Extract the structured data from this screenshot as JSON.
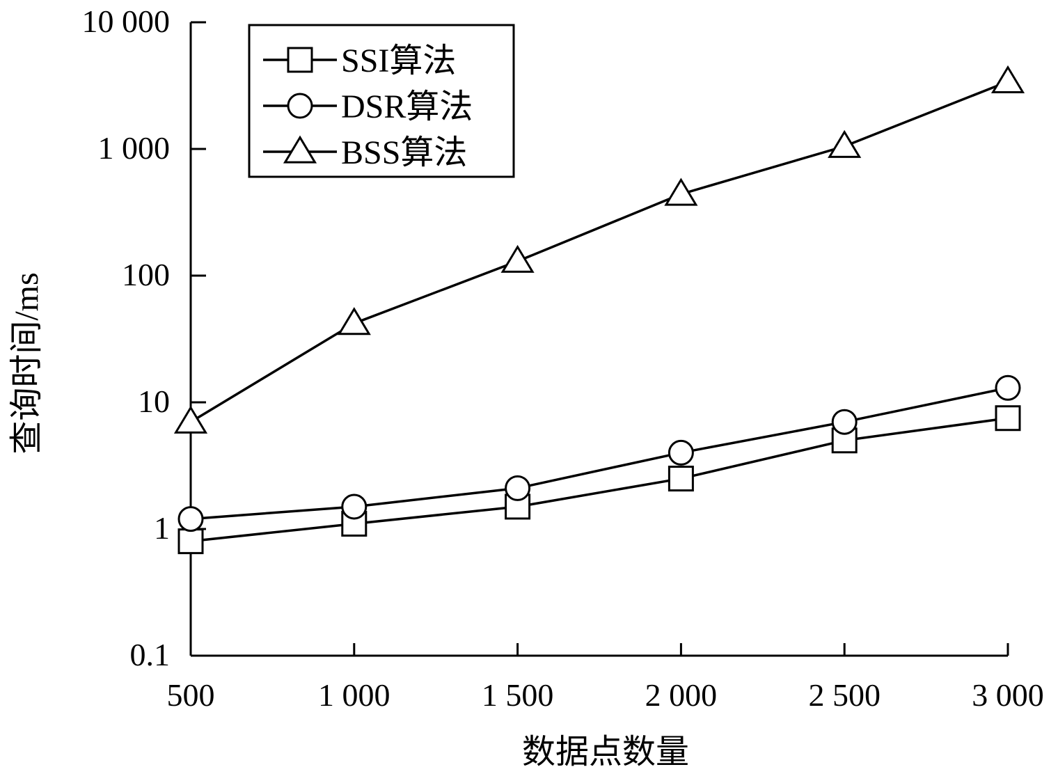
{
  "chart_data": {
    "type": "line",
    "title": "",
    "xlabel": "数据点数量",
    "ylabel": "查询时间/ms",
    "x": [
      500,
      1000,
      1500,
      2000,
      2500,
      3000
    ],
    "x_tick_labels": [
      "500",
      "1 000",
      "1 500",
      "2 000",
      "2 500",
      "3 000"
    ],
    "y_scale": "log",
    "ylim": [
      0.1,
      10000
    ],
    "y_ticks": [
      0.1,
      1,
      10,
      100,
      1000,
      10000
    ],
    "y_tick_labels": [
      "0.1",
      "1",
      "10",
      "100",
      "1 000",
      "10 000"
    ],
    "grid": false,
    "legend_position": "top-left",
    "series": [
      {
        "name": "SSI算法",
        "marker": "square",
        "values": [
          0.8,
          1.1,
          1.5,
          2.5,
          5.0,
          7.5
        ]
      },
      {
        "name": "DSR算法",
        "marker": "circle",
        "values": [
          1.2,
          1.5,
          2.1,
          4.0,
          7.0,
          13.0
        ]
      },
      {
        "name": "BSS算法",
        "marker": "triangle",
        "values": [
          7.0,
          42,
          130,
          440,
          1050,
          3400
        ]
      }
    ],
    "colors": {
      "line": "#000000",
      "background": "#ffffff"
    }
  }
}
